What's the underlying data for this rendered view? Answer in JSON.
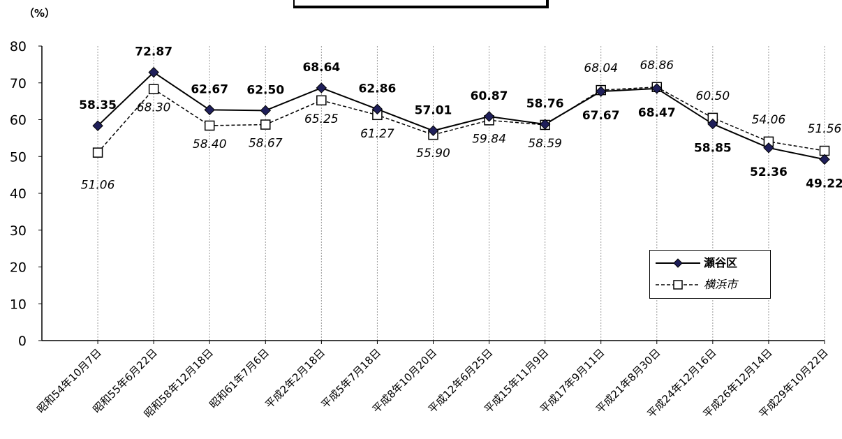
{
  "unit_label": "（%）",
  "chart_data": {
    "type": "line",
    "categories": [
      "昭和54年10月7日",
      "昭和55年6月22日",
      "昭和58年12月18日",
      "昭和61年7月6日",
      "平成2年2月18日",
      "平成5年7月18日",
      "平成8年10月20日",
      "平成12年6月25日",
      "平成15年11月9日",
      "平成17年9月11日",
      "平成21年8月30日",
      "平成24年12月16日",
      "平成26年12月14日",
      "平成29年10月22日"
    ],
    "series": [
      {
        "name": "瀬谷区",
        "values": [
          58.35,
          72.87,
          62.67,
          62.5,
          68.64,
          62.86,
          57.01,
          60.87,
          58.76,
          67.67,
          68.47,
          58.85,
          52.36,
          49.22
        ],
        "labels": [
          "58.35",
          "72.87",
          "62.67",
          "62.50",
          "68.64",
          "62.86",
          "57.01",
          "60.87",
          "58.76",
          "67.67",
          "68.47",
          "58.85",
          "52.36",
          "49.22"
        ],
        "style": "solid",
        "marker": "diamond",
        "color": "#1f1f5a"
      },
      {
        "name": "横浜市",
        "values": [
          51.06,
          68.3,
          58.4,
          58.67,
          65.25,
          61.27,
          55.9,
          59.84,
          58.59,
          68.04,
          68.86,
          60.5,
          54.06,
          51.56
        ],
        "labels": [
          "51.06",
          "68.30",
          "58.40",
          "58.67",
          "65.25",
          "61.27",
          "55.90",
          "59.84",
          "58.59",
          "68.04",
          "68.86",
          "60.50",
          "54.06",
          "51.56"
        ],
        "style": "dashed",
        "marker": "square",
        "color": "#000000"
      }
    ],
    "ylim": [
      0,
      80
    ],
    "yticks": [
      "0",
      "10",
      "20",
      "30",
      "40",
      "50",
      "60",
      "70",
      "80"
    ],
    "grid": "vertical dotted",
    "legend_position": "lower-right"
  }
}
